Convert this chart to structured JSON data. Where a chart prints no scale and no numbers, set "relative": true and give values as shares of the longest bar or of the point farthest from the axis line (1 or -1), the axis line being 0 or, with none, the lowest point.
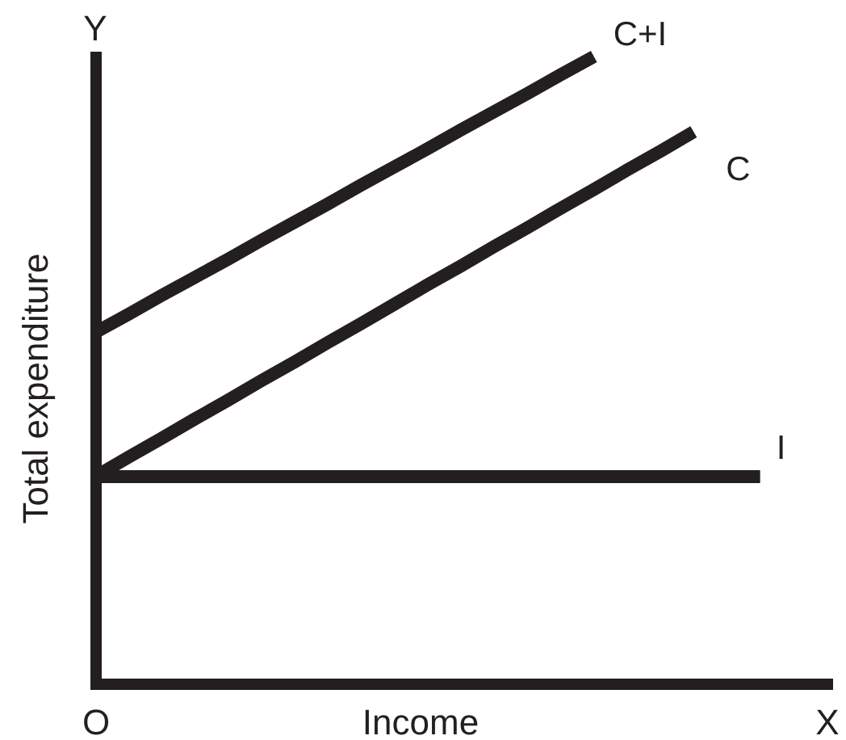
{
  "chart_data": {
    "type": "line",
    "relative": true,
    "xlabel": "Income",
    "ylabel": "Total expenditure",
    "categories": [
      "O",
      null,
      null,
      null,
      null,
      null,
      null,
      null,
      null,
      null,
      null,
      null,
      null,
      null,
      null,
      null,
      null,
      null,
      null,
      null,
      null,
      null,
      "X"
    ],
    "annotations": [
      "Y"
    ],
    "line_style": "solid",
    "series": [
      {
        "name": "C+I",
        "color": "#231f20",
        "values": [
          0.56,
          0.589,
          0.619,
          0.648,
          0.677,
          0.707,
          0.736,
          0.765,
          0.795,
          0.824,
          0.853,
          0.883,
          0.912,
          0.941,
          0.971,
          1,
          null,
          null,
          null,
          null,
          null,
          null,
          null
        ]
      },
      {
        "name": "C",
        "color": "#231f20",
        "values": [
          0.33,
          0.361,
          0.391,
          0.422,
          0.452,
          0.483,
          0.513,
          0.544,
          0.574,
          0.605,
          0.636,
          0.666,
          0.697,
          0.727,
          0.758,
          0.788,
          0.819,
          0.849,
          0.88,
          null,
          null,
          null,
          null
        ]
      },
      {
        "name": "I",
        "color": "#231f20",
        "values": [
          0.33,
          0.33,
          0.33,
          0.33,
          0.33,
          0.33,
          0.33,
          0.33,
          0.33,
          0.33,
          0.33,
          0.33,
          0.33,
          0.33,
          0.33,
          0.33,
          0.33,
          0.33,
          0.33,
          0.33,
          0.33,
          null,
          null
        ]
      }
    ]
  }
}
